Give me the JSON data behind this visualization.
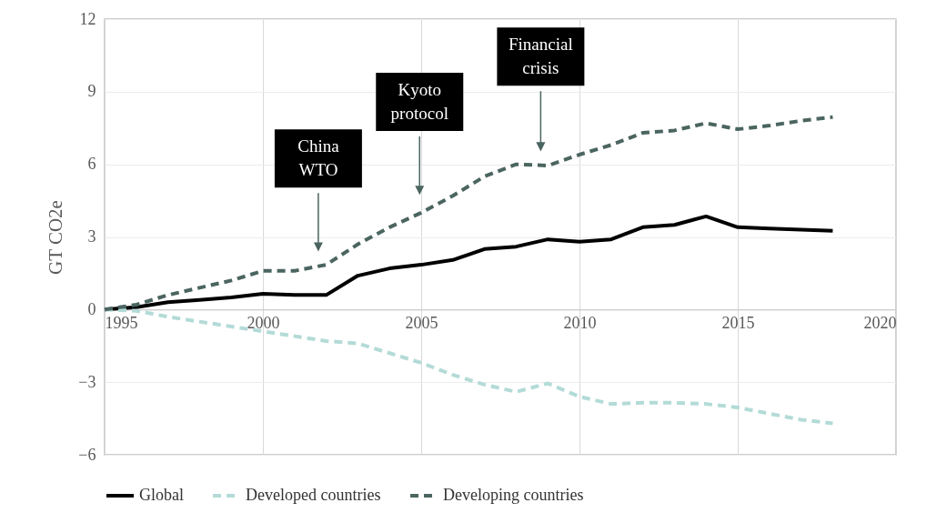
{
  "chart_data": {
    "type": "line",
    "ylabel": "GT CO2e",
    "x": [
      1995,
      1996,
      1997,
      1998,
      1999,
      2000,
      2001,
      2002,
      2003,
      2004,
      2005,
      2006,
      2007,
      2008,
      2009,
      2010,
      2011,
      2012,
      2013,
      2014,
      2015,
      2016,
      2017,
      2018
    ],
    "series": [
      {
        "name": "Global",
        "color": "#000000",
        "line_style": "solid",
        "values": [
          0,
          0.1,
          0.3,
          0.4,
          0.5,
          0.65,
          0.6,
          0.6,
          1.4,
          1.7,
          1.85,
          2.05,
          2.5,
          2.6,
          2.9,
          2.8,
          2.9,
          3.4,
          3.5,
          3.85,
          3.4,
          3.35,
          3.3,
          3.25
        ]
      },
      {
        "name": "Developed countries",
        "color": "#b3dbd7",
        "line_style": "dashed",
        "values": [
          0,
          -0.05,
          -0.3,
          -0.5,
          -0.7,
          -0.9,
          -1.1,
          -1.3,
          -1.4,
          -1.8,
          -2.2,
          -2.7,
          -3.1,
          -3.4,
          -3.05,
          -3.6,
          -3.9,
          -3.85,
          -3.85,
          -3.9,
          -4.05,
          -4.3,
          -4.55,
          -4.7
        ]
      },
      {
        "name": "Developing countries",
        "color": "#4b6560",
        "line_style": "dashed",
        "values": [
          0,
          0.2,
          0.6,
          0.9,
          1.2,
          1.6,
          1.6,
          1.85,
          2.7,
          3.4,
          4.0,
          4.7,
          5.5,
          6.0,
          5.95,
          6.4,
          6.8,
          7.3,
          7.4,
          7.7,
          7.45,
          7.6,
          7.8,
          7.95
        ]
      }
    ],
    "xlim": [
      1995,
      2020
    ],
    "xticks": [
      1995,
      2000,
      2005,
      2010,
      2015,
      2020
    ],
    "ylim": [
      -6,
      12
    ],
    "yticks": [
      -6,
      -3,
      0,
      3,
      6,
      9,
      12
    ],
    "grid": true,
    "legend": "bottom",
    "marker": "none",
    "annotations": [
      "China WTO",
      "Kyoto protocol",
      "Financial crisis"
    ]
  }
}
